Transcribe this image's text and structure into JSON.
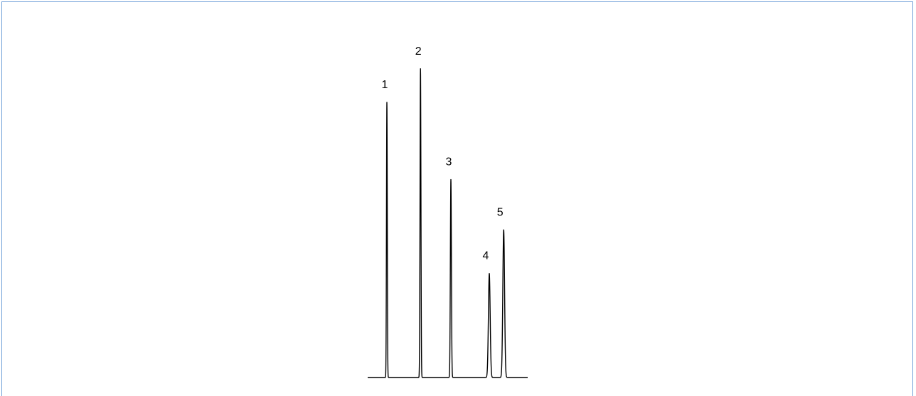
{
  "colors": {
    "frame_border": "#6f9fd8",
    "trace": "#000000",
    "background": "#ffffff"
  },
  "chart_data": {
    "type": "line",
    "title": "",
    "xlabel": "",
    "ylabel": "",
    "grid": false,
    "legend": "none",
    "x_range": [
      0,
      100
    ],
    "y_range": [
      0,
      100
    ],
    "baseline": 0,
    "peaks": [
      {
        "label": "1",
        "retention": 12.0,
        "height": 82,
        "width": 0.25
      },
      {
        "label": "2",
        "retention": 33.0,
        "height": 92,
        "width": 0.28
      },
      {
        "label": "3",
        "retention": 52.0,
        "height": 59,
        "width": 0.32
      },
      {
        "label": "4",
        "retention": 76.0,
        "height": 31,
        "width": 0.55
      },
      {
        "label": "5",
        "retention": 85.0,
        "height": 44,
        "width": 0.55
      }
    ]
  }
}
